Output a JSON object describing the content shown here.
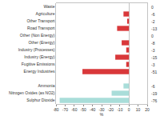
{
  "chart_data": {
    "type": "bar",
    "orientation": "horizontal",
    "categories": [
      "Waste",
      "Agriculture",
      "Other Transport",
      "Road Transport",
      "Other (Non Energy)",
      "Other (Energy)",
      "Industry (Processes)",
      "Industry (Energy)",
      "Fugitive Emissions",
      "Energy Industries",
      null,
      "Ammonia",
      "Nitrogen Oxides (as NO2)",
      "Sulphur Dioxide"
    ],
    "values": [
      0,
      -6,
      -2,
      -13,
      0,
      -8,
      -3,
      -15,
      -3,
      -51,
      null,
      -6,
      -19,
      -76
    ],
    "colors": [
      "#d9383a",
      "#d9383a",
      "#d9383a",
      "#d9383a",
      "#d9383a",
      "#d9383a",
      "#d9383a",
      "#d9383a",
      "#d9383a",
      "#d9383a",
      "#d9383a",
      "#a9ddd9",
      "#a9ddd9",
      "#a9ddd9"
    ],
    "x_label": "%",
    "xlim": [
      -80,
      20
    ],
    "xticks": [
      -80,
      -70,
      -60,
      -50,
      -40,
      -30,
      -20,
      -10,
      0,
      10,
      20
    ],
    "grid": false,
    "data_labels": true
  }
}
